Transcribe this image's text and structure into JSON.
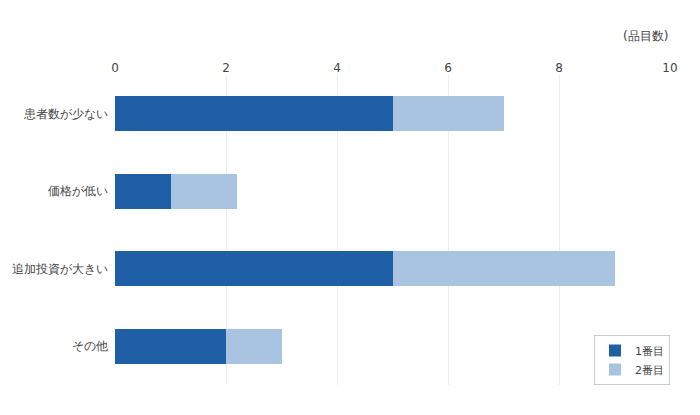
{
  "chart_data": {
    "type": "bar",
    "orientation": "horizontal",
    "stacked": true,
    "xlabel": "(品目数)",
    "categories": [
      "その他",
      "追加投資が大きい",
      "価格が低い",
      "患者数が少ない"
    ],
    "series": [
      {
        "name": "1番目",
        "color": "#1F5FA6",
        "values": [
          2,
          5,
          1,
          5
        ]
      },
      {
        "name": "2番目",
        "color": "#A8C4E0",
        "values": [
          1,
          4,
          1.2,
          2
        ]
      }
    ],
    "xlim": [
      0,
      10
    ],
    "xticks": [
      0,
      2,
      4,
      6,
      8,
      10
    ],
    "grid": true,
    "legend": "lower right"
  }
}
